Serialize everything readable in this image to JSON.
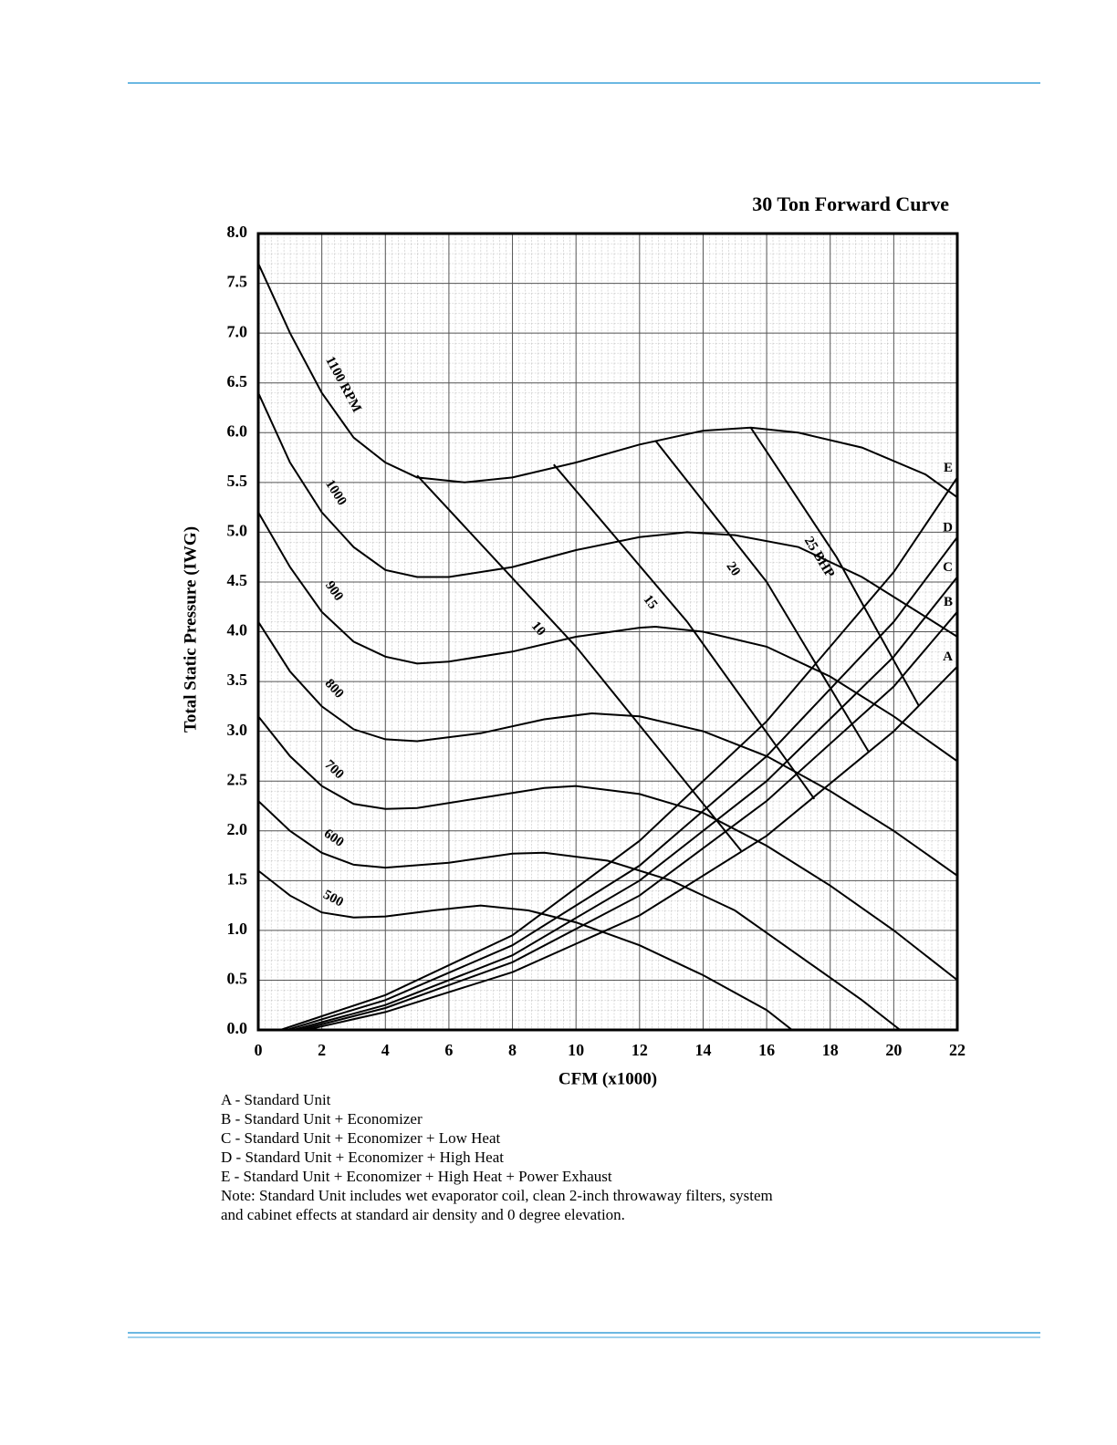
{
  "chart_data": {
    "type": "line",
    "title": "30 Ton Forward Curve",
    "x_label": "CFM (x1000)",
    "y_label": "Total Static Pressure (IWG)",
    "xlim": [
      0,
      22
    ],
    "ylim": [
      0,
      8
    ],
    "xticks": [
      0,
      2,
      4,
      6,
      8,
      10,
      12,
      14,
      16,
      18,
      20,
      22
    ],
    "yticks": [
      {
        "value": 0,
        "label": "0.0"
      },
      {
        "value": 0.5,
        "label": "0.5"
      },
      {
        "value": 1,
        "label": "1.0"
      },
      {
        "value": 1.5,
        "label": "1.5"
      },
      {
        "value": 2,
        "label": "2.0"
      },
      {
        "value": 2.5,
        "label": "2.5"
      },
      {
        "value": 3,
        "label": "3.0"
      },
      {
        "value": 3.5,
        "label": "3.5"
      },
      {
        "value": 4,
        "label": "4.0"
      },
      {
        "value": 4.5,
        "label": "4.5"
      },
      {
        "value": 5,
        "label": "5.0"
      },
      {
        "value": 5.5,
        "label": "5.5"
      },
      {
        "value": 6,
        "label": "6.0"
      },
      {
        "value": 6.5,
        "label": "6.5"
      },
      {
        "value": 7,
        "label": "7.0"
      },
      {
        "value": 7.5,
        "label": "7.5"
      },
      {
        "value": 8,
        "label": "8.0"
      }
    ],
    "grid": true,
    "color": "#000000",
    "rpm_curves": [
      {
        "name": "1100 RPM",
        "x": [
          0,
          1,
          2,
          3,
          4,
          5,
          6.5,
          8,
          10,
          12,
          14,
          15.5,
          17,
          19,
          21,
          22
        ],
        "values": [
          7.7,
          7.0,
          6.4,
          5.95,
          5.7,
          5.55,
          5.5,
          5.55,
          5.7,
          5.88,
          6.02,
          6.05,
          6.0,
          5.85,
          5.58,
          5.35
        ]
      },
      {
        "name": "1000",
        "x": [
          0,
          1,
          2,
          3,
          4,
          5,
          6,
          8,
          10,
          12,
          13.5,
          15,
          17,
          19,
          21,
          22
        ],
        "values": [
          6.4,
          5.7,
          5.2,
          4.85,
          4.62,
          4.55,
          4.55,
          4.65,
          4.82,
          4.95,
          5.0,
          4.97,
          4.85,
          4.55,
          4.15,
          3.95
        ]
      },
      {
        "name": "900",
        "x": [
          0,
          1,
          2,
          3,
          4,
          5,
          6,
          8,
          10,
          12,
          12.5,
          14,
          16,
          18,
          20,
          22
        ],
        "values": [
          5.2,
          4.65,
          4.2,
          3.9,
          3.75,
          3.68,
          3.7,
          3.8,
          3.95,
          4.04,
          4.05,
          4.0,
          3.85,
          3.55,
          3.15,
          2.7
        ]
      },
      {
        "name": "800",
        "x": [
          0,
          1,
          2,
          3,
          4,
          5,
          7,
          9,
          10.5,
          12,
          14,
          16,
          18,
          20,
          22
        ],
        "values": [
          4.1,
          3.6,
          3.25,
          3.02,
          2.92,
          2.9,
          2.98,
          3.12,
          3.18,
          3.15,
          3.0,
          2.75,
          2.4,
          2.0,
          1.55
        ]
      },
      {
        "name": "700",
        "x": [
          0,
          1,
          2,
          3,
          4,
          5,
          7,
          9,
          10,
          12,
          14,
          16,
          18,
          20,
          22
        ],
        "values": [
          3.15,
          2.75,
          2.45,
          2.27,
          2.22,
          2.23,
          2.33,
          2.43,
          2.45,
          2.37,
          2.18,
          1.85,
          1.45,
          1.0,
          0.5
        ]
      },
      {
        "name": "600",
        "x": [
          0,
          1,
          2,
          3,
          4,
          6,
          8,
          9,
          11,
          13,
          15,
          17,
          19,
          20.2
        ],
        "values": [
          2.3,
          2.0,
          1.78,
          1.66,
          1.63,
          1.68,
          1.77,
          1.78,
          1.7,
          1.5,
          1.2,
          0.75,
          0.3,
          0.0
        ]
      },
      {
        "name": "500",
        "x": [
          0,
          1,
          2,
          3,
          4,
          5.5,
          7,
          8.5,
          10,
          12,
          14,
          16,
          16.8
        ],
        "values": [
          1.6,
          1.35,
          1.18,
          1.13,
          1.14,
          1.2,
          1.25,
          1.2,
          1.08,
          0.85,
          0.55,
          0.2,
          0.0
        ]
      }
    ],
    "bhp_curves": [
      {
        "name": "10",
        "x": [
          5,
          10,
          15.2
        ],
        "values": [
          5.57,
          3.85,
          1.8
        ]
      },
      {
        "name": "15",
        "x": [
          9.3,
          13.5,
          17.5
        ],
        "values": [
          5.68,
          4.1,
          2.32
        ]
      },
      {
        "name": "20",
        "x": [
          12.5,
          16,
          19.2
        ],
        "values": [
          5.92,
          4.5,
          2.8
        ]
      },
      {
        "name": "25 BHP",
        "x": [
          15.5,
          18.2,
          20.8
        ],
        "values": [
          6.05,
          4.75,
          3.25
        ]
      }
    ],
    "system_curves": [
      {
        "name": "A",
        "x": [
          1.5,
          4,
          8,
          12,
          16,
          20,
          22
        ],
        "values": [
          0,
          0.18,
          0.58,
          1.15,
          1.95,
          3.0,
          3.65
        ]
      },
      {
        "name": "B",
        "x": [
          1.3,
          4,
          8,
          12,
          16,
          20,
          22
        ],
        "values": [
          0,
          0.22,
          0.68,
          1.35,
          2.3,
          3.45,
          4.2
        ]
      },
      {
        "name": "C",
        "x": [
          1.1,
          4,
          8,
          12,
          16,
          20,
          22
        ],
        "values": [
          0,
          0.25,
          0.75,
          1.5,
          2.5,
          3.75,
          4.55
        ]
      },
      {
        "name": "D",
        "x": [
          0.9,
          4,
          8,
          12,
          16,
          20,
          22
        ],
        "values": [
          0,
          0.3,
          0.85,
          1.65,
          2.75,
          4.1,
          4.95
        ]
      },
      {
        "name": "E",
        "x": [
          0.7,
          4,
          8,
          12,
          16,
          20,
          22
        ],
        "values": [
          0,
          0.35,
          0.95,
          1.9,
          3.1,
          4.6,
          5.55
        ]
      }
    ],
    "notes": [
      "A - Standard Unit",
      "B - Standard Unit + Economizer",
      "C - Standard Unit + Economizer + Low Heat",
      "D - Standard Unit + Economizer + High Heat",
      "E - Standard Unit + Economizer + High Heat + Power Exhaust",
      "Note: Standard Unit includes wet evaporator coil, clean 2-inch throwaway filters, system",
      "and cabinet effects at standard air density and 0 degree elevation."
    ]
  }
}
